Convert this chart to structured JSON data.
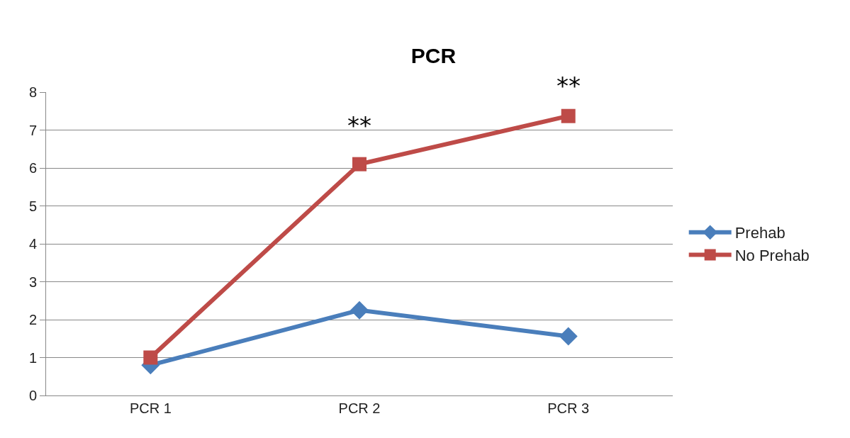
{
  "chart_data": {
    "type": "line",
    "title": "PCR",
    "categories": [
      "PCR 1",
      "PCR 2",
      "PCR 3"
    ],
    "series": [
      {
        "name": "Prehab",
        "color": "#4a7ebb",
        "marker": "diamond",
        "values": [
          0.8,
          2.25,
          1.56
        ]
      },
      {
        "name": "No Prehab",
        "color": "#be4b48",
        "marker": "square",
        "values": [
          1.0,
          6.1,
          7.37
        ]
      }
    ],
    "annotations": [
      "**",
      "**"
    ],
    "ylim": [
      0,
      8
    ],
    "yticks": [
      0,
      1,
      2,
      3,
      4,
      5,
      6,
      7,
      8
    ],
    "grid": "y",
    "legend": "right"
  }
}
